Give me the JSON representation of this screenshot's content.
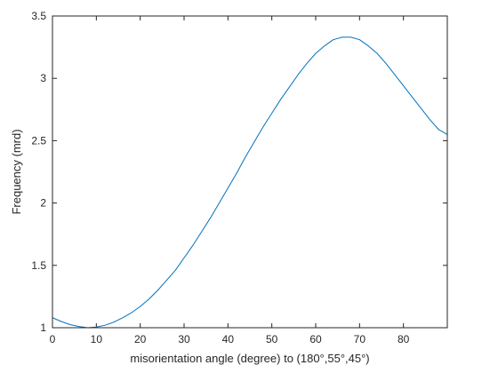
{
  "chart_data": {
    "type": "line",
    "xlabel": "misorientation angle (degree) to (180°,55°,45°)",
    "ylabel": "Frequency (mrd)",
    "xlim": [
      0,
      90
    ],
    "ylim": [
      1,
      3.5
    ],
    "xticks": [
      0,
      10,
      20,
      30,
      40,
      50,
      60,
      70,
      80
    ],
    "yticks": [
      1,
      1.5,
      2,
      2.5,
      3,
      3.5
    ],
    "xtick_labels": [
      "0",
      "10",
      "20",
      "30",
      "40",
      "50",
      "60",
      "70",
      "80"
    ],
    "ytick_labels": [
      "1",
      "1.5",
      "2",
      "2.5",
      "3",
      "3.5"
    ],
    "grid": false,
    "box": true,
    "series": [
      {
        "color": "#0072BD",
        "x": [
          0,
          2,
          4,
          6,
          8,
          10,
          12,
          14,
          16,
          18,
          20,
          22,
          24,
          26,
          28,
          30,
          32,
          34,
          36,
          38,
          40,
          42,
          44,
          46,
          48,
          50,
          52,
          54,
          56,
          58,
          60,
          62,
          64,
          66,
          68,
          70,
          72,
          74,
          76,
          78,
          80,
          82,
          84,
          86,
          88,
          90
        ],
        "y": [
          1.08,
          1.05,
          1.025,
          1.01,
          1.0,
          1.005,
          1.02,
          1.045,
          1.08,
          1.12,
          1.17,
          1.23,
          1.3,
          1.38,
          1.46,
          1.56,
          1.66,
          1.77,
          1.88,
          2.0,
          2.12,
          2.24,
          2.37,
          2.49,
          2.61,
          2.72,
          2.83,
          2.93,
          3.03,
          3.12,
          3.2,
          3.26,
          3.31,
          3.33,
          3.33,
          3.31,
          3.26,
          3.2,
          3.12,
          3.03,
          2.94,
          2.85,
          2.76,
          2.67,
          2.59,
          2.55
        ]
      }
    ]
  }
}
